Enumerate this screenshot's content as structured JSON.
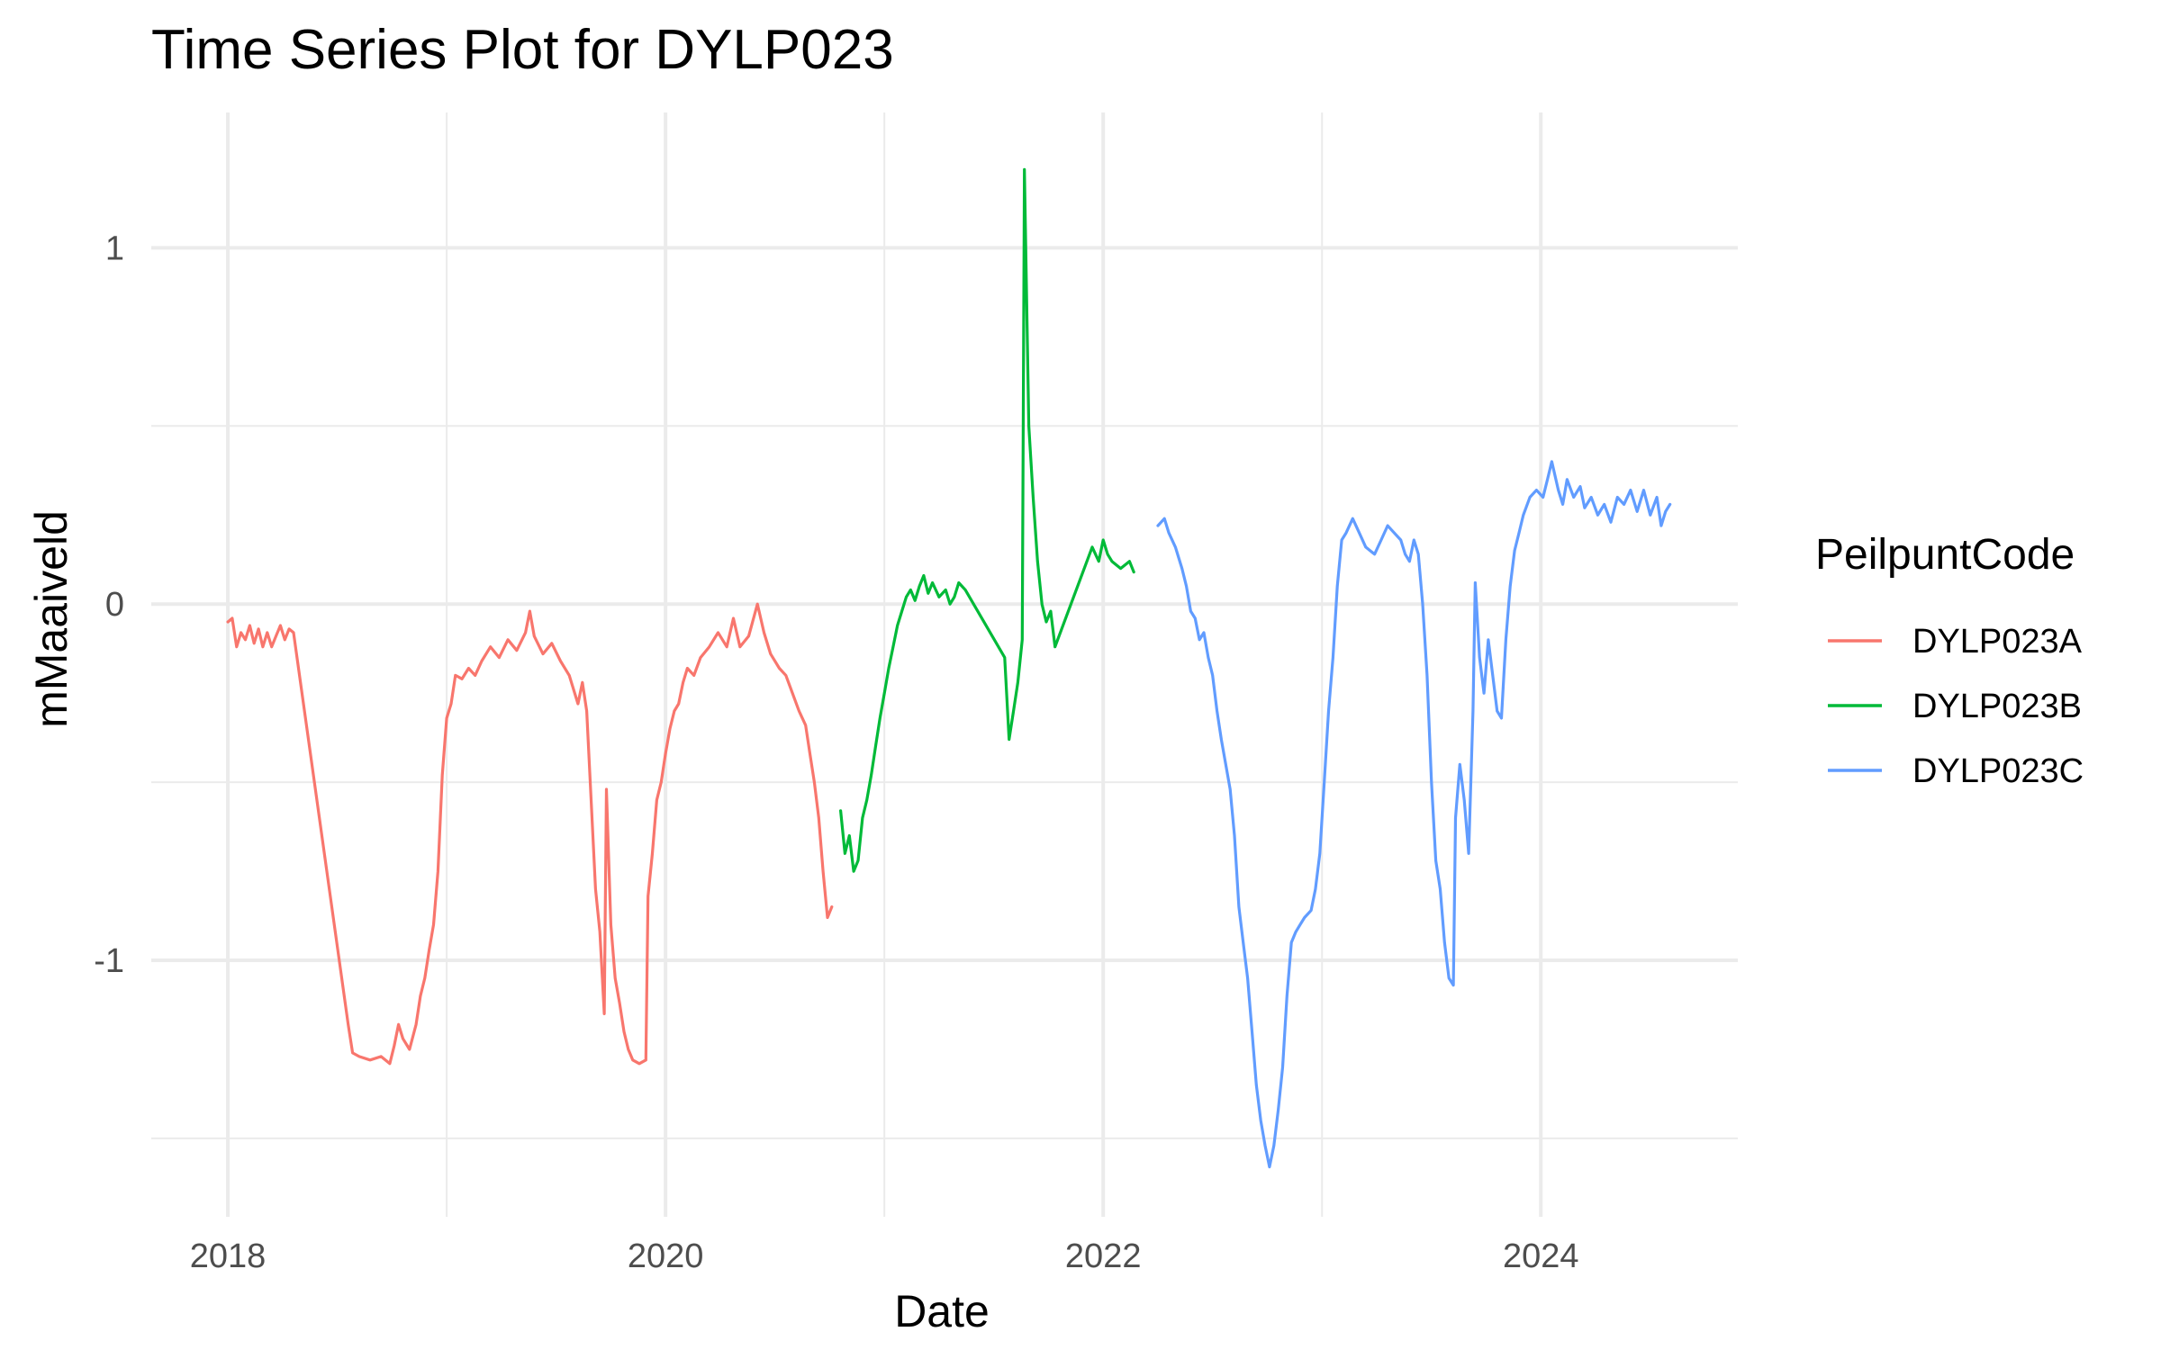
{
  "chart_data": {
    "type": "line",
    "title": "Time Series Plot for DYLP023",
    "xlabel": "Date",
    "ylabel": "mMaaiveld",
    "xlim": [
      2017.65,
      2024.9
    ],
    "ylim": [
      -1.72,
      1.38
    ],
    "x_ticks": [
      2018,
      2020,
      2022,
      2024
    ],
    "x_tick_labels": [
      "2018",
      "2020",
      "2022",
      "2024"
    ],
    "x_minor": [
      2019,
      2021,
      2023
    ],
    "y_ticks": [
      -1,
      0,
      1
    ],
    "y_tick_labels": [
      "-1",
      "0",
      "1"
    ],
    "y_minor": [
      -1.5,
      -0.5,
      0.5
    ],
    "grid": true,
    "legend": {
      "title": "PeilpuntCode",
      "position": "right"
    },
    "series": [
      {
        "name": "DYLP023A",
        "color": "#F8766D",
        "points": [
          [
            2018.0,
            -0.05
          ],
          [
            2018.02,
            -0.04
          ],
          [
            2018.04,
            -0.12
          ],
          [
            2018.06,
            -0.08
          ],
          [
            2018.08,
            -0.1
          ],
          [
            2018.1,
            -0.06
          ],
          [
            2018.12,
            -0.11
          ],
          [
            2018.14,
            -0.07
          ],
          [
            2018.16,
            -0.12
          ],
          [
            2018.18,
            -0.08
          ],
          [
            2018.2,
            -0.12
          ],
          [
            2018.22,
            -0.09
          ],
          [
            2018.24,
            -0.06
          ],
          [
            2018.26,
            -0.1
          ],
          [
            2018.28,
            -0.07
          ],
          [
            2018.3,
            -0.08
          ],
          [
            2018.55,
            -1.18
          ],
          [
            2018.57,
            -1.26
          ],
          [
            2018.6,
            -1.27
          ],
          [
            2018.65,
            -1.28
          ],
          [
            2018.7,
            -1.27
          ],
          [
            2018.74,
            -1.29
          ],
          [
            2018.76,
            -1.24
          ],
          [
            2018.78,
            -1.18
          ],
          [
            2018.8,
            -1.22
          ],
          [
            2018.83,
            -1.25
          ],
          [
            2018.86,
            -1.18
          ],
          [
            2018.88,
            -1.1
          ],
          [
            2018.9,
            -1.05
          ],
          [
            2018.92,
            -0.97
          ],
          [
            2018.94,
            -0.9
          ],
          [
            2018.96,
            -0.75
          ],
          [
            2018.98,
            -0.48
          ],
          [
            2019.0,
            -0.32
          ],
          [
            2019.02,
            -0.28
          ],
          [
            2019.04,
            -0.2
          ],
          [
            2019.07,
            -0.21
          ],
          [
            2019.1,
            -0.18
          ],
          [
            2019.13,
            -0.2
          ],
          [
            2019.16,
            -0.16
          ],
          [
            2019.2,
            -0.12
          ],
          [
            2019.24,
            -0.15
          ],
          [
            2019.28,
            -0.1
          ],
          [
            2019.32,
            -0.13
          ],
          [
            2019.36,
            -0.08
          ],
          [
            2019.38,
            -0.02
          ],
          [
            2019.4,
            -0.09
          ],
          [
            2019.44,
            -0.14
          ],
          [
            2019.48,
            -0.11
          ],
          [
            2019.52,
            -0.16
          ],
          [
            2019.56,
            -0.2
          ],
          [
            2019.6,
            -0.28
          ],
          [
            2019.62,
            -0.22
          ],
          [
            2019.64,
            -0.3
          ],
          [
            2019.66,
            -0.55
          ],
          [
            2019.68,
            -0.8
          ],
          [
            2019.7,
            -0.92
          ],
          [
            2019.72,
            -1.15
          ],
          [
            2019.73,
            -0.52
          ],
          [
            2019.75,
            -0.9
          ],
          [
            2019.77,
            -1.05
          ],
          [
            2019.79,
            -1.12
          ],
          [
            2019.81,
            -1.2
          ],
          [
            2019.83,
            -1.25
          ],
          [
            2019.85,
            -1.28
          ],
          [
            2019.88,
            -1.29
          ],
          [
            2019.91,
            -1.28
          ],
          [
            2019.92,
            -0.82
          ],
          [
            2019.94,
            -0.7
          ],
          [
            2019.96,
            -0.55
          ],
          [
            2019.98,
            -0.5
          ],
          [
            2020.0,
            -0.42
          ],
          [
            2020.02,
            -0.35
          ],
          [
            2020.04,
            -0.3
          ],
          [
            2020.06,
            -0.28
          ],
          [
            2020.08,
            -0.22
          ],
          [
            2020.1,
            -0.18
          ],
          [
            2020.13,
            -0.2
          ],
          [
            2020.16,
            -0.15
          ],
          [
            2020.2,
            -0.12
          ],
          [
            2020.24,
            -0.08
          ],
          [
            2020.28,
            -0.12
          ],
          [
            2020.31,
            -0.04
          ],
          [
            2020.34,
            -0.12
          ],
          [
            2020.38,
            -0.09
          ],
          [
            2020.42,
            0.0
          ],
          [
            2020.45,
            -0.08
          ],
          [
            2020.48,
            -0.14
          ],
          [
            2020.52,
            -0.18
          ],
          [
            2020.55,
            -0.2
          ],
          [
            2020.58,
            -0.25
          ],
          [
            2020.61,
            -0.3
          ],
          [
            2020.64,
            -0.34
          ],
          [
            2020.66,
            -0.42
          ],
          [
            2020.68,
            -0.5
          ],
          [
            2020.7,
            -0.6
          ],
          [
            2020.72,
            -0.75
          ],
          [
            2020.74,
            -0.88
          ],
          [
            2020.76,
            -0.85
          ]
        ]
      },
      {
        "name": "DYLP023B",
        "color": "#00BA38",
        "points": [
          [
            2020.8,
            -0.58
          ],
          [
            2020.82,
            -0.7
          ],
          [
            2020.84,
            -0.65
          ],
          [
            2020.86,
            -0.75
          ],
          [
            2020.88,
            -0.72
          ],
          [
            2020.9,
            -0.6
          ],
          [
            2020.92,
            -0.55
          ],
          [
            2020.94,
            -0.48
          ],
          [
            2020.96,
            -0.4
          ],
          [
            2020.98,
            -0.32
          ],
          [
            2021.0,
            -0.25
          ],
          [
            2021.02,
            -0.18
          ],
          [
            2021.04,
            -0.12
          ],
          [
            2021.06,
            -0.06
          ],
          [
            2021.08,
            -0.02
          ],
          [
            2021.1,
            0.02
          ],
          [
            2021.12,
            0.04
          ],
          [
            2021.14,
            0.01
          ],
          [
            2021.16,
            0.05
          ],
          [
            2021.18,
            0.08
          ],
          [
            2021.2,
            0.03
          ],
          [
            2021.22,
            0.06
          ],
          [
            2021.25,
            0.02
          ],
          [
            2021.28,
            0.04
          ],
          [
            2021.3,
            0.0
          ],
          [
            2021.32,
            0.02
          ],
          [
            2021.34,
            0.06
          ],
          [
            2021.37,
            0.04
          ],
          [
            2021.55,
            -0.15
          ],
          [
            2021.57,
            -0.38
          ],
          [
            2021.59,
            -0.3
          ],
          [
            2021.61,
            -0.22
          ],
          [
            2021.63,
            -0.1
          ],
          [
            2021.64,
            1.22
          ],
          [
            2021.66,
            0.5
          ],
          [
            2021.68,
            0.3
          ],
          [
            2021.7,
            0.12
          ],
          [
            2021.72,
            0.0
          ],
          [
            2021.74,
            -0.05
          ],
          [
            2021.76,
            -0.02
          ],
          [
            2021.78,
            -0.12
          ],
          [
            2021.95,
            0.16
          ],
          [
            2021.98,
            0.12
          ],
          [
            2022.0,
            0.18
          ],
          [
            2022.02,
            0.14
          ],
          [
            2022.04,
            0.12
          ],
          [
            2022.08,
            0.1
          ],
          [
            2022.12,
            0.12
          ],
          [
            2022.14,
            0.09
          ]
        ]
      },
      {
        "name": "DYLP023C",
        "color": "#619CFF",
        "points": [
          [
            2022.25,
            0.22
          ],
          [
            2022.28,
            0.24
          ],
          [
            2022.3,
            0.2
          ],
          [
            2022.33,
            0.16
          ],
          [
            2022.36,
            0.1
          ],
          [
            2022.38,
            0.05
          ],
          [
            2022.4,
            -0.02
          ],
          [
            2022.42,
            -0.04
          ],
          [
            2022.44,
            -0.1
          ],
          [
            2022.46,
            -0.08
          ],
          [
            2022.48,
            -0.15
          ],
          [
            2022.5,
            -0.2
          ],
          [
            2022.52,
            -0.3
          ],
          [
            2022.54,
            -0.38
          ],
          [
            2022.56,
            -0.45
          ],
          [
            2022.58,
            -0.52
          ],
          [
            2022.6,
            -0.65
          ],
          [
            2022.62,
            -0.85
          ],
          [
            2022.64,
            -0.95
          ],
          [
            2022.66,
            -1.05
          ],
          [
            2022.68,
            -1.2
          ],
          [
            2022.7,
            -1.35
          ],
          [
            2022.72,
            -1.45
          ],
          [
            2022.74,
            -1.52
          ],
          [
            2022.76,
            -1.58
          ],
          [
            2022.78,
            -1.52
          ],
          [
            2022.8,
            -1.42
          ],
          [
            2022.82,
            -1.3
          ],
          [
            2022.84,
            -1.1
          ],
          [
            2022.86,
            -0.95
          ],
          [
            2022.88,
            -0.92
          ],
          [
            2022.9,
            -0.9
          ],
          [
            2022.92,
            -0.88
          ],
          [
            2022.95,
            -0.86
          ],
          [
            2022.97,
            -0.8
          ],
          [
            2022.99,
            -0.7
          ],
          [
            2023.01,
            -0.5
          ],
          [
            2023.03,
            -0.3
          ],
          [
            2023.05,
            -0.15
          ],
          [
            2023.07,
            0.05
          ],
          [
            2023.09,
            0.18
          ],
          [
            2023.11,
            0.2
          ],
          [
            2023.14,
            0.24
          ],
          [
            2023.17,
            0.2
          ],
          [
            2023.2,
            0.16
          ],
          [
            2023.24,
            0.14
          ],
          [
            2023.27,
            0.18
          ],
          [
            2023.3,
            0.22
          ],
          [
            2023.33,
            0.2
          ],
          [
            2023.36,
            0.18
          ],
          [
            2023.38,
            0.14
          ],
          [
            2023.4,
            0.12
          ],
          [
            2023.42,
            0.18
          ],
          [
            2023.44,
            0.14
          ],
          [
            2023.46,
            0.0
          ],
          [
            2023.48,
            -0.2
          ],
          [
            2023.5,
            -0.5
          ],
          [
            2023.52,
            -0.72
          ],
          [
            2023.54,
            -0.8
          ],
          [
            2023.56,
            -0.95
          ],
          [
            2023.58,
            -1.05
          ],
          [
            2023.6,
            -1.07
          ],
          [
            2023.61,
            -0.6
          ],
          [
            2023.63,
            -0.45
          ],
          [
            2023.65,
            -0.55
          ],
          [
            2023.67,
            -0.7
          ],
          [
            2023.69,
            -0.3
          ],
          [
            2023.7,
            0.06
          ],
          [
            2023.72,
            -0.15
          ],
          [
            2023.74,
            -0.25
          ],
          [
            2023.76,
            -0.1
          ],
          [
            2023.78,
            -0.2
          ],
          [
            2023.8,
            -0.3
          ],
          [
            2023.82,
            -0.32
          ],
          [
            2023.84,
            -0.1
          ],
          [
            2023.86,
            0.05
          ],
          [
            2023.88,
            0.15
          ],
          [
            2023.9,
            0.2
          ],
          [
            2023.92,
            0.25
          ],
          [
            2023.95,
            0.3
          ],
          [
            2023.98,
            0.32
          ],
          [
            2024.01,
            0.3
          ],
          [
            2024.03,
            0.35
          ],
          [
            2024.05,
            0.4
          ],
          [
            2024.08,
            0.32
          ],
          [
            2024.1,
            0.28
          ],
          [
            2024.12,
            0.35
          ],
          [
            2024.15,
            0.3
          ],
          [
            2024.18,
            0.33
          ],
          [
            2024.2,
            0.27
          ],
          [
            2024.23,
            0.3
          ],
          [
            2024.26,
            0.25
          ],
          [
            2024.29,
            0.28
          ],
          [
            2024.32,
            0.23
          ],
          [
            2024.35,
            0.3
          ],
          [
            2024.38,
            0.28
          ],
          [
            2024.41,
            0.32
          ],
          [
            2024.44,
            0.26
          ],
          [
            2024.47,
            0.32
          ],
          [
            2024.5,
            0.25
          ],
          [
            2024.53,
            0.3
          ],
          [
            2024.55,
            0.22
          ],
          [
            2024.57,
            0.26
          ],
          [
            2024.59,
            0.28
          ]
        ]
      }
    ]
  }
}
